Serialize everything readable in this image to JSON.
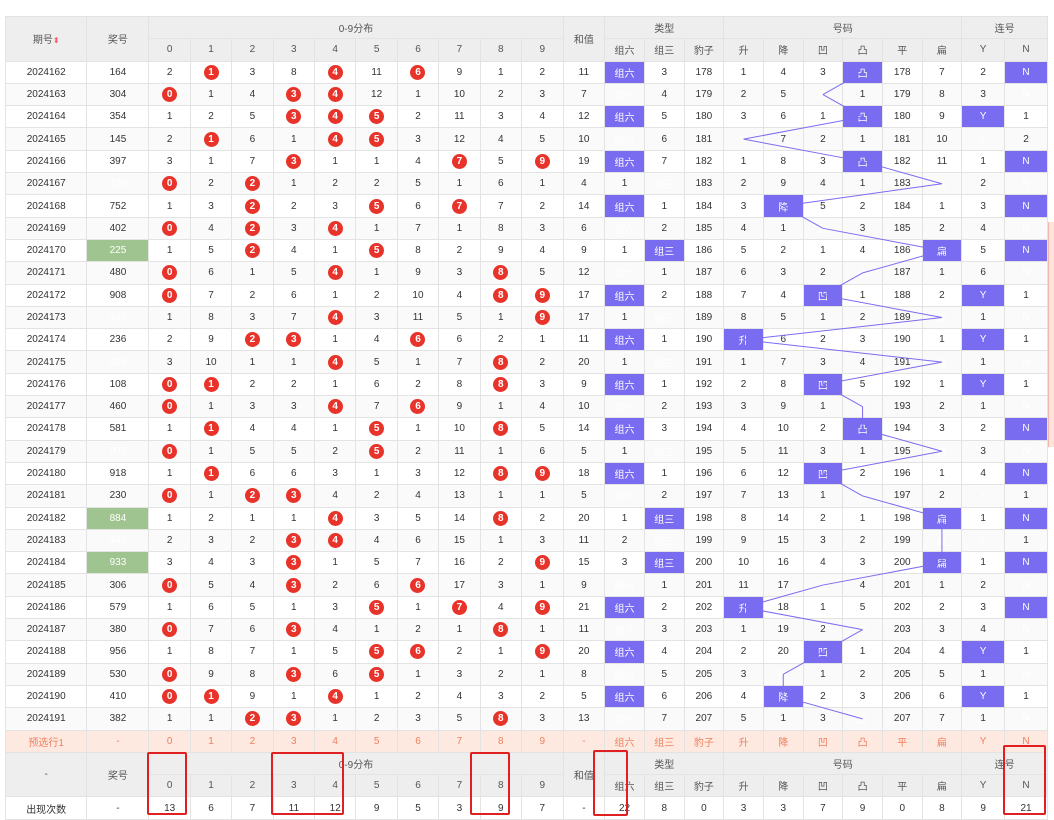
{
  "headers": {
    "issue": "期号",
    "prize": "奖号",
    "dist": "0-9分布",
    "sum": "和值",
    "type": "类型",
    "code": "号码",
    "streak": "连号",
    "digits": [
      "0",
      "1",
      "2",
      "3",
      "4",
      "5",
      "6",
      "7",
      "8",
      "9"
    ],
    "types": [
      "组六",
      "组三",
      "豹子"
    ],
    "codes": [
      "升",
      "降",
      "凹",
      "凸",
      "平",
      "扁"
    ],
    "streaks": [
      "Y",
      "N"
    ]
  },
  "rows": [
    {
      "issue": "2024162",
      "prize": "164",
      "d": [
        "2",
        "1",
        "3",
        "8",
        "4",
        "11",
        "6",
        "9",
        "1",
        "2"
      ],
      "sum": "11",
      "t": [
        "组六",
        "3",
        "178"
      ],
      "c": [
        "1",
        "4",
        "3",
        "凸",
        "178",
        "7"
      ],
      "s": [
        "2",
        "N"
      ]
    },
    {
      "issue": "2024163",
      "prize": "304",
      "d": [
        "0",
        "1",
        "4",
        "3",
        "4",
        "12",
        "1",
        "10",
        "2",
        "3"
      ],
      "sum": "7",
      "t": [
        "组六",
        "4",
        "179"
      ],
      "c": [
        "2",
        "5",
        "凹",
        "1",
        "179",
        "8"
      ],
      "s": [
        "3",
        "N"
      ]
    },
    {
      "issue": "2024164",
      "prize": "354",
      "d": [
        "1",
        "2",
        "5",
        "3",
        "4",
        "5",
        "2",
        "11",
        "3",
        "4"
      ],
      "sum": "12",
      "t": [
        "组六",
        "5",
        "180"
      ],
      "c": [
        "3",
        "6",
        "1",
        "凸",
        "180",
        "9"
      ],
      "s": [
        "Y",
        "1"
      ]
    },
    {
      "issue": "2024165",
      "prize": "145",
      "d": [
        "2",
        "1",
        "6",
        "1",
        "4",
        "5",
        "3",
        "12",
        "4",
        "5"
      ],
      "sum": "10",
      "t": [
        "组六",
        "6",
        "181"
      ],
      "c": [
        "升",
        "7",
        "2",
        "1",
        "181",
        "10"
      ],
      "s": [
        "Y",
        "2"
      ]
    },
    {
      "issue": "2024166",
      "prize": "397",
      "d": [
        "3",
        "1",
        "7",
        "3",
        "1",
        "1",
        "4",
        "7",
        "5",
        "9"
      ],
      "sum": "19",
      "t": [
        "组六",
        "7",
        "182"
      ],
      "c": [
        "1",
        "8",
        "3",
        "凸",
        "182",
        "11"
      ],
      "s": [
        "1",
        "N"
      ]
    },
    {
      "issue": "2024167",
      "prize": "220",
      "d": [
        "0",
        "2",
        "2",
        "1",
        "2",
        "2",
        "5",
        "1",
        "6",
        "1"
      ],
      "sum": "4",
      "t": [
        "1",
        "组三",
        "183"
      ],
      "c": [
        "2",
        "9",
        "4",
        "1",
        "183",
        "扁"
      ],
      "s": [
        "2",
        "N"
      ]
    },
    {
      "issue": "2024168",
      "prize": "752",
      "d": [
        "1",
        "3",
        "2",
        "2",
        "3",
        "5",
        "6",
        "7",
        "7",
        "2"
      ],
      "sum": "14",
      "t": [
        "组六",
        "1",
        "184"
      ],
      "c": [
        "3",
        "降",
        "5",
        "2",
        "184",
        "1"
      ],
      "s": [
        "3",
        "N"
      ]
    },
    {
      "issue": "2024169",
      "prize": "402",
      "d": [
        "0",
        "4",
        "2",
        "3",
        "4",
        "1",
        "7",
        "1",
        "8",
        "3"
      ],
      "sum": "6",
      "t": [
        "组六",
        "2",
        "185"
      ],
      "c": [
        "4",
        "1",
        "凹",
        "3",
        "185",
        "2"
      ],
      "s": [
        "4",
        "N"
      ]
    },
    {
      "issue": "2024170",
      "prize": "225",
      "d": [
        "1",
        "5",
        "2",
        "4",
        "1",
        "5",
        "8",
        "2",
        "9",
        "4"
      ],
      "sum": "9",
      "t": [
        "1",
        "组三",
        "186"
      ],
      "c": [
        "5",
        "2",
        "1",
        "4",
        "186",
        "扁"
      ],
      "s": [
        "5",
        "N"
      ]
    },
    {
      "issue": "2024171",
      "prize": "480",
      "d": [
        "0",
        "6",
        "1",
        "5",
        "4",
        "1",
        "9",
        "3",
        "8",
        "5"
      ],
      "sum": "12",
      "t": [
        "组六",
        "1",
        "187"
      ],
      "c": [
        "6",
        "3",
        "2",
        "凸",
        "187",
        "1"
      ],
      "s": [
        "6",
        "N"
      ]
    },
    {
      "issue": "2024172",
      "prize": "908",
      "d": [
        "0",
        "7",
        "2",
        "6",
        "1",
        "2",
        "10",
        "4",
        "8",
        "9"
      ],
      "sum": "17",
      "t": [
        "组六",
        "2",
        "188"
      ],
      "c": [
        "7",
        "4",
        "凹",
        "1",
        "188",
        "2"
      ],
      "s": [
        "Y",
        "1"
      ]
    },
    {
      "issue": "2024173",
      "prize": "449",
      "d": [
        "1",
        "8",
        "3",
        "7",
        "4",
        "3",
        "11",
        "5",
        "1",
        "9"
      ],
      "sum": "17",
      "t": [
        "1",
        "组三",
        "189"
      ],
      "c": [
        "8",
        "5",
        "1",
        "2",
        "189",
        "扁"
      ],
      "s": [
        "1",
        "N"
      ]
    },
    {
      "issue": "2024174",
      "prize": "236",
      "d": [
        "2",
        "9",
        "2",
        "3",
        "1",
        "4",
        "6",
        "6",
        "2",
        "1"
      ],
      "sum": "11",
      "t": [
        "组六",
        "1",
        "190"
      ],
      "c": [
        "升",
        "6",
        "2",
        "3",
        "190",
        "1"
      ],
      "s": [
        "Y",
        "1"
      ]
    },
    {
      "issue": "2024175",
      "prize": "488",
      "d": [
        "3",
        "10",
        "1",
        "1",
        "4",
        "5",
        "1",
        "7",
        "8",
        "2"
      ],
      "sum": "20",
      "t": [
        "1",
        "组三",
        "191"
      ],
      "c": [
        "1",
        "7",
        "3",
        "4",
        "191",
        "扁"
      ],
      "s": [
        "1",
        "N"
      ]
    },
    {
      "issue": "2024176",
      "prize": "108",
      "d": [
        "0",
        "1",
        "2",
        "2",
        "1",
        "6",
        "2",
        "8",
        "8",
        "3"
      ],
      "sum": "9",
      "t": [
        "组六",
        "1",
        "192"
      ],
      "c": [
        "2",
        "8",
        "凹",
        "5",
        "192",
        "1"
      ],
      "s": [
        "Y",
        "1"
      ]
    },
    {
      "issue": "2024177",
      "prize": "460",
      "d": [
        "0",
        "1",
        "3",
        "3",
        "4",
        "7",
        "6",
        "9",
        "1",
        "4"
      ],
      "sum": "10",
      "t": [
        "组六",
        "2",
        "193"
      ],
      "c": [
        "3",
        "9",
        "1",
        "凸",
        "193",
        "2"
      ],
      "s": [
        "1",
        "N"
      ]
    },
    {
      "issue": "2024178",
      "prize": "581",
      "d": [
        "1",
        "1",
        "4",
        "4",
        "1",
        "5",
        "1",
        "10",
        "8",
        "5"
      ],
      "sum": "14",
      "t": [
        "组六",
        "3",
        "194"
      ],
      "c": [
        "4",
        "10",
        "2",
        "凸",
        "194",
        "3"
      ],
      "s": [
        "2",
        "N"
      ]
    },
    {
      "issue": "2024179",
      "prize": "005",
      "d": [
        "0",
        "1",
        "5",
        "5",
        "2",
        "5",
        "2",
        "11",
        "1",
        "6"
      ],
      "sum": "5",
      "t": [
        "1",
        "组三",
        "195"
      ],
      "c": [
        "5",
        "11",
        "3",
        "1",
        "195",
        "扁"
      ],
      "s": [
        "3",
        "N"
      ]
    },
    {
      "issue": "2024180",
      "prize": "918",
      "d": [
        "1",
        "1",
        "6",
        "6",
        "3",
        "1",
        "3",
        "12",
        "8",
        "9"
      ],
      "sum": "18",
      "t": [
        "组六",
        "1",
        "196"
      ],
      "c": [
        "6",
        "12",
        "凹",
        "2",
        "196",
        "1"
      ],
      "s": [
        "4",
        "N"
      ]
    },
    {
      "issue": "2024181",
      "prize": "230",
      "d": [
        "0",
        "1",
        "2",
        "3",
        "4",
        "2",
        "4",
        "13",
        "1",
        "1"
      ],
      "sum": "5",
      "t": [
        "组六",
        "2",
        "197"
      ],
      "c": [
        "7",
        "13",
        "1",
        "凸",
        "197",
        "2"
      ],
      "s": [
        "Y",
        "1"
      ]
    },
    {
      "issue": "2024182",
      "prize": "884",
      "d": [
        "1",
        "2",
        "1",
        "1",
        "4",
        "3",
        "5",
        "14",
        "8",
        "2"
      ],
      "sum": "20",
      "t": [
        "1",
        "组三",
        "198"
      ],
      "c": [
        "8",
        "14",
        "2",
        "1",
        "198",
        "扁"
      ],
      "s": [
        "1",
        "N"
      ]
    },
    {
      "issue": "2024183",
      "prize": "443",
      "d": [
        "2",
        "3",
        "2",
        "3",
        "4",
        "4",
        "6",
        "15",
        "1",
        "3"
      ],
      "sum": "11",
      "t": [
        "2",
        "组三",
        "199"
      ],
      "c": [
        "9",
        "15",
        "3",
        "2",
        "199",
        "扁"
      ],
      "s": [
        "Y",
        "1"
      ]
    },
    {
      "issue": "2024184",
      "prize": "933",
      "d": [
        "3",
        "4",
        "3",
        "3",
        "1",
        "5",
        "7",
        "16",
        "2",
        "9"
      ],
      "sum": "15",
      "t": [
        "3",
        "组三",
        "200"
      ],
      "c": [
        "10",
        "16",
        "4",
        "3",
        "200",
        "扁"
      ],
      "s": [
        "1",
        "N"
      ]
    },
    {
      "issue": "2024185",
      "prize": "306",
      "d": [
        "0",
        "5",
        "4",
        "3",
        "2",
        "6",
        "6",
        "17",
        "3",
        "1"
      ],
      "sum": "9",
      "t": [
        "组六",
        "1",
        "201"
      ],
      "c": [
        "11",
        "17",
        "凹",
        "4",
        "201",
        "1"
      ],
      "s": [
        "2",
        "N"
      ]
    },
    {
      "issue": "2024186",
      "prize": "579",
      "d": [
        "1",
        "6",
        "5",
        "1",
        "3",
        "5",
        "1",
        "7",
        "4",
        "9"
      ],
      "sum": "21",
      "t": [
        "组六",
        "2",
        "202"
      ],
      "c": [
        "升",
        "18",
        "1",
        "5",
        "202",
        "2"
      ],
      "s": [
        "3",
        "N"
      ]
    },
    {
      "issue": "2024187",
      "prize": "380",
      "d": [
        "0",
        "7",
        "6",
        "3",
        "4",
        "1",
        "2",
        "1",
        "8",
        "1"
      ],
      "sum": "11",
      "t": [
        "组六",
        "3",
        "203"
      ],
      "c": [
        "1",
        "19",
        "2",
        "凸",
        "203",
        "3"
      ],
      "s": [
        "4",
        "N"
      ]
    },
    {
      "issue": "2024188",
      "prize": "956",
      "d": [
        "1",
        "8",
        "7",
        "1",
        "5",
        "5",
        "6",
        "2",
        "1",
        "9"
      ],
      "sum": "20",
      "t": [
        "组六",
        "4",
        "204"
      ],
      "c": [
        "2",
        "20",
        "凹",
        "1",
        "204",
        "4"
      ],
      "s": [
        "Y",
        "1"
      ]
    },
    {
      "issue": "2024189",
      "prize": "530",
      "d": [
        "0",
        "9",
        "8",
        "3",
        "6",
        "5",
        "1",
        "3",
        "2",
        "1"
      ],
      "sum": "8",
      "t": [
        "组六",
        "5",
        "205"
      ],
      "c": [
        "3",
        "降",
        "1",
        "2",
        "205",
        "5"
      ],
      "s": [
        "1",
        "N"
      ]
    },
    {
      "issue": "2024190",
      "prize": "410",
      "d": [
        "0",
        "1",
        "9",
        "1",
        "4",
        "1",
        "2",
        "4",
        "3",
        "2"
      ],
      "sum": "5",
      "t": [
        "组六",
        "6",
        "206"
      ],
      "c": [
        "4",
        "降",
        "2",
        "3",
        "206",
        "6"
      ],
      "s": [
        "Y",
        "1"
      ]
    },
    {
      "issue": "2024191",
      "prize": "382",
      "d": [
        "1",
        "1",
        "2",
        "3",
        "1",
        "2",
        "3",
        "5",
        "8",
        "3"
      ],
      "sum": "13",
      "t": [
        "组六",
        "7",
        "207"
      ],
      "c": [
        "5",
        "1",
        "3",
        "凸",
        "207",
        "7"
      ],
      "s": [
        "1",
        "N"
      ]
    }
  ],
  "predict": {
    "label": "预选行1",
    "prize": "-",
    "d": [
      "0",
      "1",
      "2",
      "3",
      "4",
      "5",
      "6",
      "7",
      "8",
      "9"
    ],
    "sum": "-",
    "t": [
      "组六",
      "组三",
      "豹子"
    ],
    "c": [
      "升",
      "降",
      "凹",
      "凸",
      "平",
      "扁"
    ],
    "s": [
      "Y",
      "N"
    ]
  },
  "footer_dash": "-",
  "count": {
    "label": "出现次数",
    "prize": "-",
    "d": [
      "13",
      "6",
      "7",
      "11",
      "12",
      "9",
      "5",
      "3",
      "9",
      "7"
    ],
    "sum": "-",
    "t": [
      "22",
      "8",
      "0"
    ],
    "c": [
      "3",
      "3",
      "7",
      "9",
      "0",
      "8"
    ],
    "s": [
      "9",
      "21"
    ]
  },
  "colors": {
    "hit": "#e8332a",
    "green": "#9fc48f",
    "purple": "#7a6cf0",
    "predict_bg": "#fde9df",
    "predict_text": "#f08060"
  }
}
